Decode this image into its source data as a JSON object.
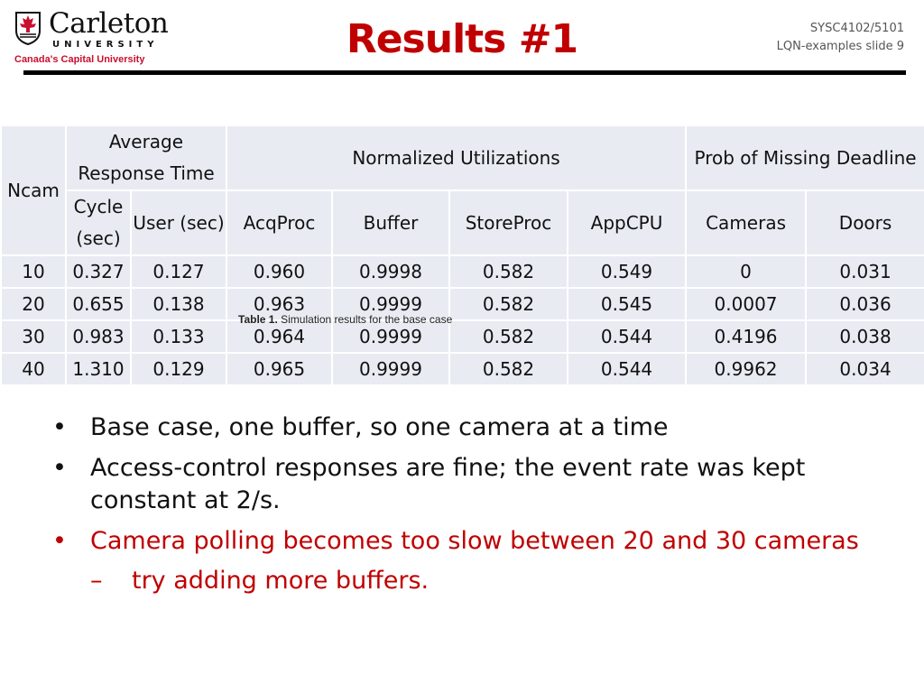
{
  "logo": {
    "wordmark": "Carleton",
    "university": "UNIVERSITY",
    "tagline": "Canada's Capital University"
  },
  "title": "Results #1",
  "course": {
    "code": "SYSC4102/5101",
    "slide": "LQN-examples slide 9"
  },
  "table": {
    "header": {
      "ncam": "Ncam",
      "avg_response": "Average Response Time",
      "normalized_util": "Normalized Utilizations",
      "prob_missing": "Prob of Missing Deadline",
      "cycle": "Cycle (sec)",
      "user": "User (sec)",
      "acqproc": "AcqProc",
      "buffer": "Buffer",
      "storeproc": "StoreProc",
      "appcpu": "AppCPU",
      "cameras": "Cameras",
      "doors": "Doors"
    },
    "rows": [
      [
        "10",
        "0.327",
        "0.127",
        "0.960",
        "0.9998",
        "0.582",
        "0.549",
        "0",
        "0.031"
      ],
      [
        "20",
        "0.655",
        "0.138",
        "0.963",
        "0.9999",
        "0.582",
        "0.545",
        "0.0007",
        "0.036"
      ],
      [
        "30",
        "0.983",
        "0.133",
        "0.964",
        "0.9999",
        "0.582",
        "0.544",
        "0.4196",
        "0.038"
      ],
      [
        "40",
        "1.310",
        "0.129",
        "0.965",
        "0.9999",
        "0.582",
        "0.544",
        "0.9962",
        "0.034"
      ]
    ],
    "caption_label": "Table 1.",
    "caption_text": "Simulation results for the base case"
  },
  "bullets": [
    "Base case, one buffer, so one camera at a time",
    "Access-control responses are fine; the event rate was kept constant at 2/s.",
    "Camera polling becomes too slow between 20 and 30 cameras"
  ],
  "sub_bullet": "try adding more buffers.",
  "colors": {
    "title": "#c00000",
    "emphasis": "#c00000",
    "table_cell": "#e8ebf2",
    "logo_red": "#c8102e"
  }
}
